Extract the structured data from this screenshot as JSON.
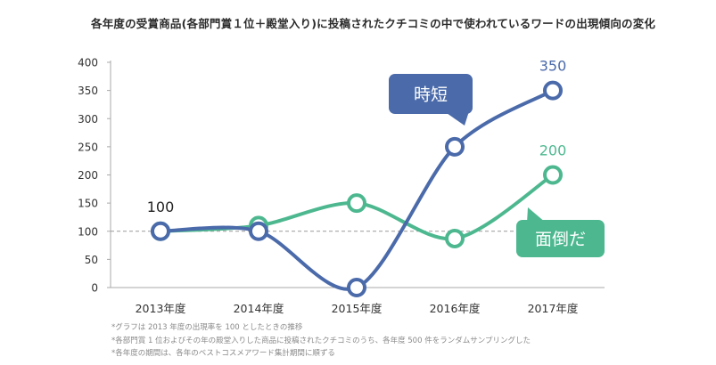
{
  "chart_data": {
    "type": "line",
    "title": "各年度の受賞商品(各部門賞１位＋殿堂入り)に投稿されたクチコミの中で使われているワードの出現傾向の変化",
    "categories": [
      "2013年度",
      "2014年度",
      "2015年度",
      "2016年度",
      "2017年度"
    ],
    "ylim": [
      0,
      400
    ],
    "yticks": [
      0,
      50,
      100,
      150,
      200,
      250,
      300,
      350,
      400
    ],
    "grid": false,
    "reference_line": 100,
    "series": [
      {
        "name": "時短",
        "values": [
          100,
          100,
          0,
          250,
          350
        ],
        "color": "#4a6aaa"
      },
      {
        "name": "面倒だ",
        "values": [
          100,
          110,
          150,
          87,
          200
        ],
        "color": "#4db890"
      }
    ],
    "annotations": [
      {
        "text": "100",
        "category": "2013年度",
        "value": 100
      },
      {
        "text": "350",
        "category": "2017年度",
        "value": 350,
        "series": "時短"
      },
      {
        "text": "200",
        "category": "2017年度",
        "value": 200,
        "series": "面倒だ"
      }
    ],
    "notes": [
      "*グラフは 2013 年度の出現率を 100 としたときの推移",
      "*各部門賞 1 位およびその年の殿堂入りした商品に投稿されたクチコミのうち、各年度 500 件をランダムサンプリングした",
      "*各年度の期間は、各年のベストコスメアワード集計期間に順ずる"
    ]
  }
}
